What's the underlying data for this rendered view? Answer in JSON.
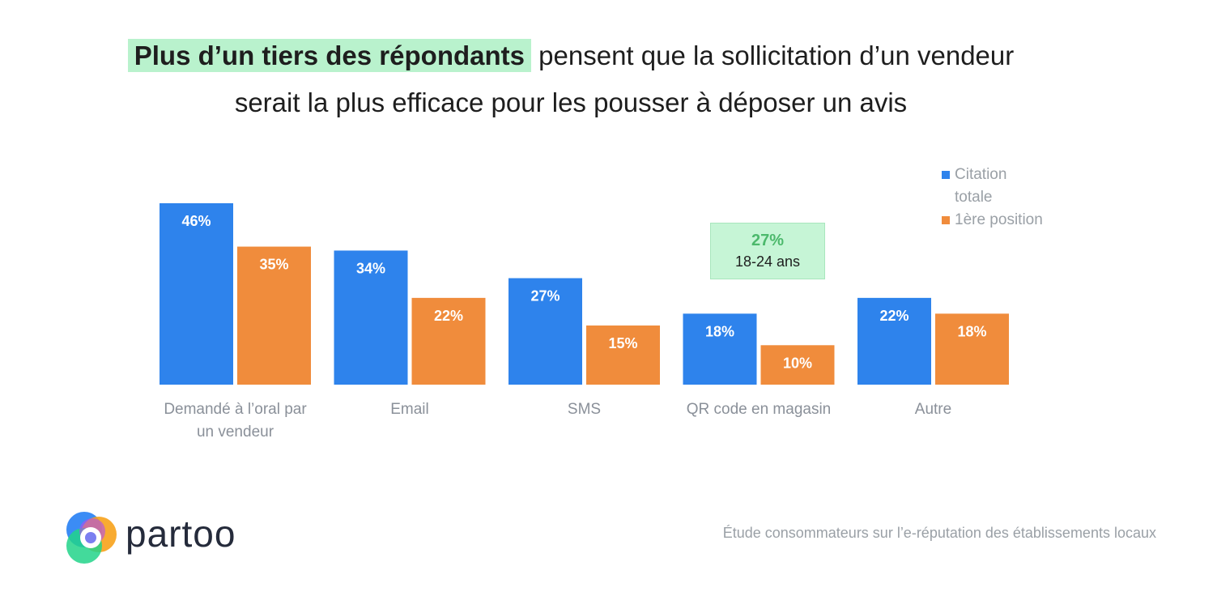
{
  "title": {
    "highlight": "Plus d’un tiers des répondants",
    "rest_line1": "pensent que la sollicitation d’un vendeur",
    "line2": "serait la plus efficace pour les pousser à déposer un avis"
  },
  "chart_data": {
    "type": "bar",
    "categories": [
      "Demandé à l’oral par un vendeur",
      "Email",
      "SMS",
      "QR code en magasin",
      "Autre"
    ],
    "category_lines": [
      [
        "Demandé à l’oral par",
        "un vendeur"
      ],
      [
        "Email"
      ],
      [
        "SMS"
      ],
      [
        "QR code en magasin"
      ],
      [
        "Autre"
      ]
    ],
    "series": [
      {
        "name": "Citation totale",
        "values": [
          46,
          34,
          27,
          18,
          22
        ],
        "labels": [
          "46%",
          "34%",
          "27%",
          "18%",
          "22%"
        ],
        "color": "#2e83ec"
      },
      {
        "name": "1ère position",
        "values": [
          35,
          22,
          15,
          10,
          18
        ],
        "labels": [
          "35%",
          "22%",
          "15%",
          "10%",
          "18%"
        ],
        "color": "#f08c3c"
      }
    ],
    "legend_lines": [
      [
        "Citation",
        "totale"
      ],
      [
        "1ère position"
      ]
    ],
    "legend_position": "top-right",
    "ylim": [
      0,
      50
    ],
    "grid": false,
    "annotation": {
      "value": "27%",
      "label": "18-24 ans",
      "category": "QR code en magasin"
    }
  },
  "logo": {
    "text": "partoo"
  },
  "source": "Étude consommateurs sur l’e-réputation des établissements locaux"
}
